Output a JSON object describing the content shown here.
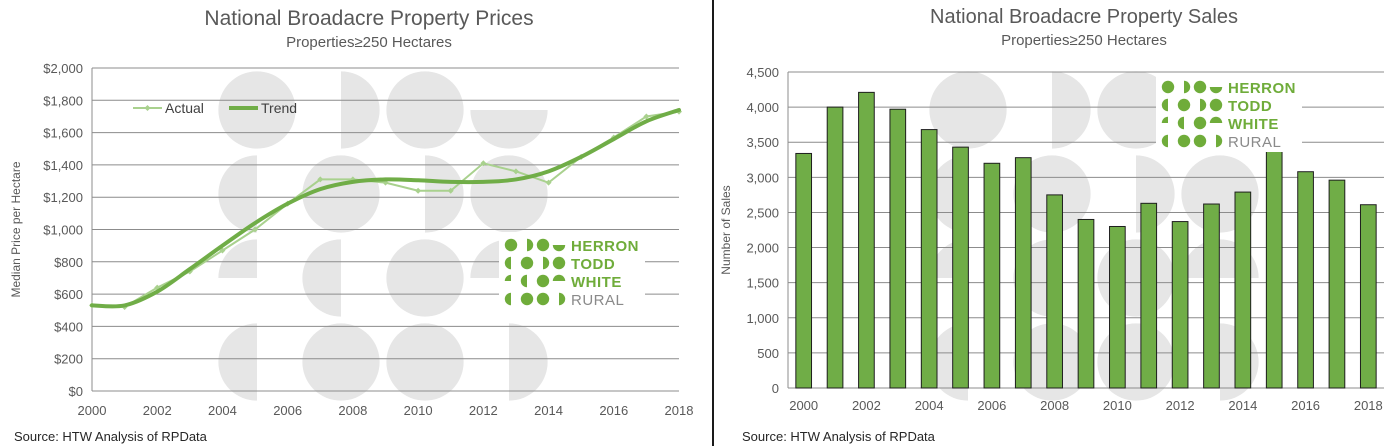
{
  "charts": [
    {
      "id": "prices",
      "title": "National Broadacre Property Prices",
      "subtitle": "Properties≥250 Hectares",
      "source": "Source: HTW Analysis of RPData",
      "ylabel": "Median Price per Hectare",
      "ytick_labels": [
        "$0",
        "$200",
        "$400",
        "$600",
        "$800",
        "$1,000",
        "$1,200",
        "$1,400",
        "$1,600",
        "$1,800",
        "$2,000"
      ],
      "xtick_labels": [
        "2000",
        "2002",
        "2004",
        "2006",
        "2008",
        "2010",
        "2012",
        "2014",
        "2016",
        "2018"
      ],
      "legend": [
        "Actual",
        "Trend"
      ]
    },
    {
      "id": "sales",
      "title": "National Broadacre Property Sales",
      "subtitle": "Properties≥250 Hectares",
      "source": "Source: HTW Analysis of RPData",
      "ylabel": "Number of Sales",
      "ytick_labels": [
        "0",
        "500",
        "1,000",
        "1,500",
        "2,000",
        "2,500",
        "3,000",
        "3,500",
        "4,000",
        "4,500"
      ],
      "xtick_labels": [
        "2000",
        "2002",
        "2004",
        "2006",
        "2008",
        "2010",
        "2012",
        "2014",
        "2016",
        "2018"
      ]
    }
  ],
  "logo": {
    "lines": [
      "HERRON",
      "TODD",
      "WHITE",
      "RURAL"
    ],
    "green": "#6fac3a",
    "grey": "#8a8a8a"
  },
  "colors": {
    "actual": "#a9d18e",
    "trend": "#70ad47",
    "bar_fill": "#70ad47",
    "bar_stroke": "#1e1e1e",
    "grid": "#8c8c8c",
    "watermark": "#e6e6e6"
  },
  "chart_data": [
    {
      "type": "line",
      "title": "National Broadacre Property Prices",
      "subtitle": "Properties≥250 Hectares",
      "xlabel": "",
      "ylabel": "Median Price per Hectare",
      "x": [
        2000,
        2001,
        2002,
        2003,
        2004,
        2005,
        2006,
        2007,
        2008,
        2009,
        2010,
        2011,
        2012,
        2013,
        2014,
        2015,
        2016,
        2017,
        2018
      ],
      "series": [
        {
          "name": "Actual",
          "values": [
            530,
            520,
            640,
            740,
            870,
            1000,
            1160,
            1310,
            1310,
            1290,
            1240,
            1240,
            1410,
            1360,
            1290,
            1450,
            1570,
            1700,
            1730
          ]
        },
        {
          "name": "Trend",
          "values": [
            530,
            530,
            615,
            755,
            900,
            1040,
            1160,
            1250,
            1295,
            1310,
            1305,
            1295,
            1295,
            1310,
            1360,
            1450,
            1560,
            1670,
            1740
          ]
        }
      ],
      "xlim": [
        2000,
        2018
      ],
      "ylim": [
        0,
        2000
      ],
      "grid": "horizontal",
      "legend_position": "top-left"
    },
    {
      "type": "bar",
      "title": "National Broadacre Property Sales",
      "subtitle": "Properties≥250 Hectares",
      "xlabel": "",
      "ylabel": "Number of Sales",
      "categories": [
        "2000",
        "2001",
        "2002",
        "2003",
        "2004",
        "2005",
        "2006",
        "2007",
        "2008",
        "2009",
        "2010",
        "2011",
        "2012",
        "2013",
        "2014",
        "2015",
        "2016",
        "2017",
        "2018"
      ],
      "values": [
        3340,
        4000,
        4210,
        3970,
        3680,
        3430,
        3200,
        3280,
        2750,
        2400,
        2300,
        2630,
        2370,
        2620,
        2790,
        3380,
        3080,
        2960,
        2610
      ],
      "ylim": [
        0,
        4500
      ],
      "grid": "horizontal"
    }
  ]
}
